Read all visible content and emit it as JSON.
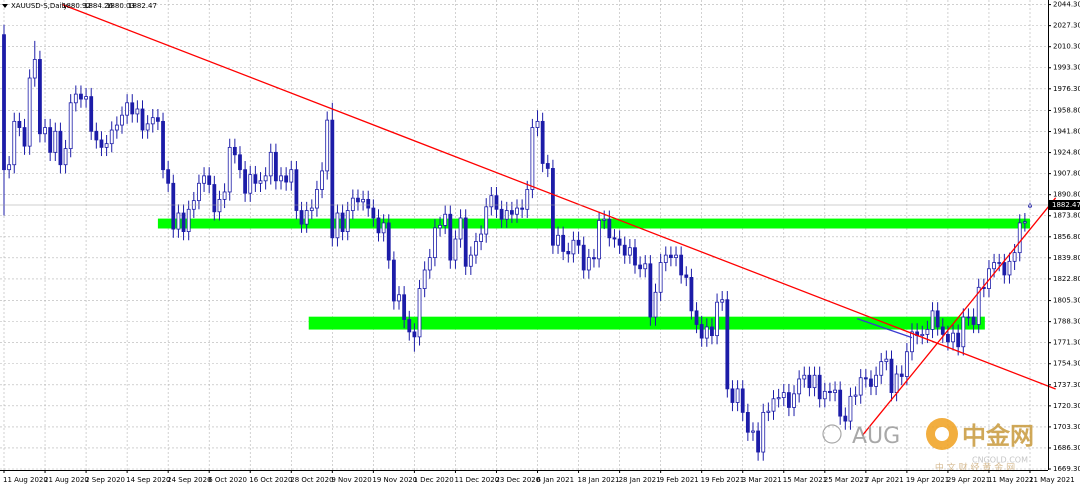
{
  "chart_data": {
    "type": "candlestick",
    "title": "XAUUSD-S,Daily",
    "color": "#1c1ca8",
    "grid": true,
    "ylim": [
      1668.5,
      2048
    ],
    "yticks": [
      {
        "value": 2044.3,
        "label": "2044.30"
      },
      {
        "value": 2027.3,
        "label": "2027.30"
      },
      {
        "value": 2010.3,
        "label": "2010.30"
      },
      {
        "value": 1993.3,
        "label": "1993.30"
      },
      {
        "value": 1976.3,
        "label": "1976.30"
      },
      {
        "value": 1958.8,
        "label": "1958.80"
      },
      {
        "value": 1941.8,
        "label": "1941.80"
      },
      {
        "value": 1924.8,
        "label": "1924.80"
      },
      {
        "value": 1907.8,
        "label": "1907.80"
      },
      {
        "value": 1890.8,
        "label": "1890.80"
      },
      {
        "value": 1873.8,
        "label": "1873.80"
      },
      {
        "value": 1856.8,
        "label": "1856.80"
      },
      {
        "value": 1839.8,
        "label": "1839.80"
      },
      {
        "value": 1822.8,
        "label": "1822.80"
      },
      {
        "value": 1805.3,
        "label": "1805.30"
      },
      {
        "value": 1788.3,
        "label": "1788.30"
      },
      {
        "value": 1771.3,
        "label": "1771.30"
      },
      {
        "value": 1754.3,
        "label": "1754.30"
      },
      {
        "value": 1737.3,
        "label": "1737.30"
      },
      {
        "value": 1720.3,
        "label": "1720.30"
      },
      {
        "value": 1703.3,
        "label": "1703.30"
      },
      {
        "value": 1686.3,
        "label": "1686.30"
      },
      {
        "value": 1669.3,
        "label": "1669.30"
      }
    ],
    "categories": [
      "11 Aug 2020",
      null,
      null,
      null,
      null,
      null,
      null,
      null,
      "21 Aug 2020",
      null,
      null,
      null,
      null,
      null,
      null,
      null,
      "2 Sep 2020",
      null,
      null,
      null,
      null,
      null,
      null,
      null,
      "14 Sep 2020",
      null,
      null,
      null,
      null,
      null,
      null,
      null,
      "24 Sep 2020",
      null,
      null,
      null,
      null,
      null,
      null,
      null,
      "6 Oct 2020",
      null,
      null,
      null,
      null,
      null,
      null,
      null,
      "16 Oct 2020",
      null,
      null,
      null,
      null,
      null,
      null,
      null,
      "28 Oct 2020",
      null,
      null,
      null,
      null,
      null,
      null,
      null,
      "9 Nov 2020",
      null,
      null,
      null,
      null,
      null,
      null,
      null,
      "19 Nov 2020",
      null,
      null,
      null,
      null,
      null,
      null,
      null,
      "1 Dec 2020",
      null,
      null,
      null,
      null,
      null,
      null,
      null,
      "11 Dec 2020",
      null,
      null,
      null,
      null,
      null,
      null,
      null,
      "23 Dec 2020",
      null,
      null,
      null,
      null,
      null,
      null,
      null,
      "6 Jan 2021",
      null,
      null,
      null,
      null,
      null,
      null,
      null,
      "18 Jan 2021",
      null,
      null,
      null,
      null,
      null,
      null,
      null,
      "28 Jan 2021",
      null,
      null,
      null,
      null,
      null,
      null,
      null,
      "9 Feb 2021",
      null,
      null,
      null,
      null,
      null,
      null,
      null,
      "19 Feb 2021",
      null,
      null,
      null,
      null,
      null,
      null,
      null,
      "3 Mar 2021",
      null,
      null,
      null,
      null,
      null,
      null,
      null,
      "15 Mar 2021",
      null,
      null,
      null,
      null,
      null,
      null,
      null,
      "25 Mar 2021",
      null,
      null,
      null,
      null,
      null,
      null,
      null,
      "7 Apr 2021",
      null,
      null,
      null,
      null,
      null,
      null,
      null,
      "19 Apr 2021",
      null,
      null,
      null,
      null,
      null,
      null,
      null,
      "29 Apr 2021",
      null,
      null,
      null,
      null,
      null,
      null,
      null,
      "11 May 2021",
      null,
      null,
      null,
      null,
      null,
      null,
      null,
      "21 May 2021"
    ],
    "open": [
      2020,
      1911,
      1915,
      1950,
      1945,
      1930,
      1985,
      2000,
      1940,
      1945,
      1925,
      1942,
      1915,
      1928,
      1965,
      1972,
      1968,
      1970,
      1942,
      1935,
      1929,
      1932,
      1943,
      1947,
      1955,
      1965,
      1956,
      1960,
      1943,
      1948,
      1953,
      1950,
      1911,
      1900,
      1863,
      1876,
      1861,
      1879,
      1886,
      1900,
      1906,
      1899,
      1877,
      1887,
      1893,
      1929,
      1923,
      1911,
      1892,
      1907,
      1900,
      1902,
      1906,
      1925,
      1902,
      1906,
      1901,
      1911,
      1878,
      1867,
      1878,
      1880,
      1895,
      1910,
      1951,
      1856,
      1876,
      1861,
      1878,
      1888,
      1885,
      1887,
      1880,
      1872,
      1860,
      1868,
      1838,
      1805,
      1810,
      1790,
      1780,
      1776,
      1815,
      1830,
      1840,
      1864,
      1866,
      1875,
      1838,
      1855,
      1872,
      1833,
      1842,
      1853,
      1859,
      1881,
      1890,
      1879,
      1871,
      1878,
      1875,
      1880,
      1879,
      1895,
      1945,
      1950,
      1916,
      1912,
      1850,
      1858,
      1845,
      1843,
      1854,
      1850,
      1830,
      1840,
      1839,
      1870,
      1871,
      1856,
      1855,
      1850,
      1842,
      1848,
      1834,
      1831,
      1835,
      1792,
      1812,
      1836,
      1842,
      1840,
      1842,
      1826,
      1824,
      1797,
      1786,
      1775,
      1784,
      1777,
      1804,
      1806,
      1734,
      1723,
      1734,
      1715,
      1699,
      1700,
      1683,
      1715,
      1716,
      1726,
      1727,
      1731,
      1719,
      1730,
      1742,
      1745,
      1735,
      1745,
      1726,
      1732,
      1731,
      1733,
      1712,
      1708,
      1728,
      1729,
      1743,
      1742,
      1736,
      1745,
      1756,
      1758,
      1731,
      1746,
      1744,
      1764,
      1780,
      1777,
      1778,
      1782,
      1797,
      1784,
      1778,
      1772,
      1779,
      1768,
      1792,
      1792,
      1786,
      1816,
      1815,
      1831,
      1836,
      1836,
      1826,
      1837,
      1844,
      1868,
      1880.92
    ],
    "high": [
      2028,
      1922,
      1957,
      1957,
      1952,
      1992,
      2015,
      2007,
      1952,
      1952,
      1949,
      1949,
      1935,
      1972,
      1979,
      1979,
      1977,
      1977,
      1949,
      1942,
      1939,
      1950,
      1954,
      1962,
      1972,
      1972,
      1967,
      1967,
      1955,
      1960,
      1960,
      1957,
      1918,
      1907,
      1883,
      1883,
      1886,
      1893,
      1907,
      1913,
      1913,
      1906,
      1894,
      1900,
      1936,
      1936,
      1930,
      1918,
      1914,
      1914,
      1909,
      1913,
      1932,
      1932,
      1913,
      1913,
      1918,
      1918,
      1885,
      1885,
      1887,
      1902,
      1917,
      1958,
      1965,
      1883,
      1883,
      1885,
      1895,
      1895,
      1894,
      1894,
      1887,
      1879,
      1875,
      1875,
      1845,
      1817,
      1817,
      1797,
      1787,
      1822,
      1837,
      1847,
      1871,
      1873,
      1882,
      1882,
      1862,
      1879,
      1879,
      1849,
      1860,
      1866,
      1888,
      1897,
      1897,
      1886,
      1885,
      1885,
      1887,
      1887,
      1902,
      1952,
      1959,
      1957,
      1923,
      1919,
      1865,
      1865,
      1852,
      1861,
      1861,
      1857,
      1847,
      1847,
      1877,
      1878,
      1878,
      1863,
      1862,
      1857,
      1855,
      1855,
      1841,
      1842,
      1842,
      1819,
      1843,
      1849,
      1849,
      1849,
      1849,
      1833,
      1831,
      1804,
      1793,
      1791,
      1791,
      1811,
      1813,
      1813,
      1741,
      1741,
      1741,
      1722,
      1707,
      1707,
      1722,
      1723,
      1733,
      1734,
      1738,
      1738,
      1737,
      1749,
      1752,
      1752,
      1752,
      1752,
      1739,
      1739,
      1740,
      1740,
      1719,
      1735,
      1736,
      1750,
      1750,
      1749,
      1752,
      1763,
      1765,
      1765,
      1753,
      1753,
      1771,
      1787,
      1787,
      1785,
      1789,
      1804,
      1804,
      1791,
      1785,
      1786,
      1786,
      1799,
      1799,
      1799,
      1823,
      1823,
      1838,
      1843,
      1843,
      1843,
      1844,
      1851,
      1875,
      1876,
      1884.26
    ],
    "low": [
      1874,
      1904,
      1908,
      1938,
      1923,
      1923,
      1978,
      1933,
      1933,
      1918,
      1918,
      1908,
      1908,
      1921,
      1958,
      1961,
      1961,
      1935,
      1928,
      1922,
      1922,
      1925,
      1936,
      1940,
      1948,
      1949,
      1949,
      1936,
      1936,
      1941,
      1943,
      1904,
      1893,
      1856,
      1856,
      1854,
      1854,
      1872,
      1879,
      1893,
      1892,
      1870,
      1870,
      1880,
      1886,
      1916,
      1904,
      1885,
      1885,
      1893,
      1893,
      1895,
      1899,
      1895,
      1895,
      1894,
      1894,
      1871,
      1860,
      1860,
      1871,
      1873,
      1888,
      1903,
      1849,
      1849,
      1854,
      1854,
      1871,
      1878,
      1878,
      1873,
      1865,
      1853,
      1853,
      1831,
      1798,
      1798,
      1783,
      1773,
      1764,
      1769,
      1808,
      1823,
      1833,
      1857,
      1859,
      1831,
      1831,
      1848,
      1826,
      1826,
      1835,
      1846,
      1852,
      1874,
      1872,
      1864,
      1864,
      1868,
      1868,
      1872,
      1872,
      1888,
      1938,
      1909,
      1905,
      1843,
      1843,
      1838,
      1836,
      1836,
      1843,
      1823,
      1823,
      1832,
      1832,
      1863,
      1849,
      1848,
      1843,
      1835,
      1835,
      1827,
      1824,
      1824,
      1785,
      1785,
      1805,
      1829,
      1833,
      1833,
      1819,
      1817,
      1790,
      1779,
      1768,
      1768,
      1770,
      1770,
      1797,
      1727,
      1716,
      1716,
      1708,
      1692,
      1692,
      1676,
      1676,
      1708,
      1709,
      1719,
      1720,
      1712,
      1712,
      1723,
      1735,
      1728,
      1728,
      1719,
      1719,
      1724,
      1724,
      1705,
      1701,
      1701,
      1721,
      1722,
      1735,
      1729,
      1729,
      1738,
      1749,
      1724,
      1724,
      1737,
      1737,
      1757,
      1770,
      1770,
      1771,
      1775,
      1777,
      1771,
      1765,
      1765,
      1761,
      1761,
      1785,
      1779,
      1779,
      1808,
      1808,
      1824,
      1829,
      1819,
      1819,
      1830,
      1837,
      1861,
      1880.03
    ],
    "close": [
      1911,
      1915,
      1950,
      1945,
      1930,
      1985,
      2000,
      1940,
      1945,
      1925,
      1942,
      1915,
      1928,
      1965,
      1972,
      1968,
      1970,
      1942,
      1935,
      1929,
      1932,
      1943,
      1947,
      1955,
      1965,
      1956,
      1960,
      1943,
      1948,
      1953,
      1950,
      1911,
      1900,
      1863,
      1876,
      1861,
      1879,
      1886,
      1900,
      1906,
      1899,
      1877,
      1887,
      1893,
      1929,
      1923,
      1911,
      1892,
      1907,
      1900,
      1902,
      1906,
      1925,
      1902,
      1906,
      1901,
      1911,
      1878,
      1867,
      1878,
      1880,
      1895,
      1910,
      1951,
      1856,
      1876,
      1861,
      1878,
      1888,
      1885,
      1887,
      1880,
      1872,
      1860,
      1868,
      1838,
      1805,
      1810,
      1790,
      1780,
      1776,
      1815,
      1830,
      1840,
      1864,
      1866,
      1875,
      1838,
      1855,
      1872,
      1833,
      1842,
      1853,
      1859,
      1881,
      1890,
      1879,
      1871,
      1878,
      1875,
      1880,
      1879,
      1895,
      1945,
      1950,
      1916,
      1912,
      1850,
      1858,
      1845,
      1843,
      1854,
      1850,
      1830,
      1840,
      1839,
      1870,
      1871,
      1856,
      1855,
      1850,
      1842,
      1848,
      1834,
      1831,
      1835,
      1792,
      1812,
      1836,
      1842,
      1840,
      1842,
      1826,
      1824,
      1797,
      1786,
      1775,
      1784,
      1777,
      1804,
      1806,
      1734,
      1723,
      1734,
      1715,
      1699,
      1700,
      1683,
      1715,
      1716,
      1726,
      1727,
      1731,
      1719,
      1730,
      1742,
      1745,
      1735,
      1745,
      1726,
      1732,
      1731,
      1733,
      1712,
      1708,
      1728,
      1729,
      1743,
      1742,
      1736,
      1745,
      1756,
      1758,
      1731,
      1746,
      1744,
      1764,
      1780,
      1777,
      1778,
      1782,
      1797,
      1784,
      1778,
      1772,
      1779,
      1768,
      1792,
      1792,
      1786,
      1816,
      1815,
      1831,
      1836,
      1836,
      1826,
      1837,
      1844,
      1868,
      1869,
      1882.47
    ],
    "zones": [
      {
        "color": "#00ff00",
        "x": [
          30,
          200
        ],
        "y": [
          1863.5,
          1871.5
        ]
      },
      {
        "color": "#00ff00",
        "x": [
          59.4,
          191.2
        ],
        "y": [
          1781.9,
          1792.3
        ]
      }
    ],
    "trendlines": [
      {
        "color": "#ff0000",
        "x": [
          11.4,
          205
        ],
        "y": [
          2044.3,
          1733.9
        ]
      },
      {
        "color": "#ff0000",
        "x": [
          167.3,
          205
        ],
        "y": [
          1696.3,
          1888.3
        ]
      },
      {
        "color": "#3a3ad0",
        "x": [
          166.3,
          177
        ],
        "y": [
          1790.7,
          1775.4
        ]
      }
    ],
    "watermark": {
      "brand": "AUG",
      "site": "中金网",
      "domain": "CNGOLD.COM",
      "slogan": "中 文 财 经 黄 金 网"
    }
  }
}
